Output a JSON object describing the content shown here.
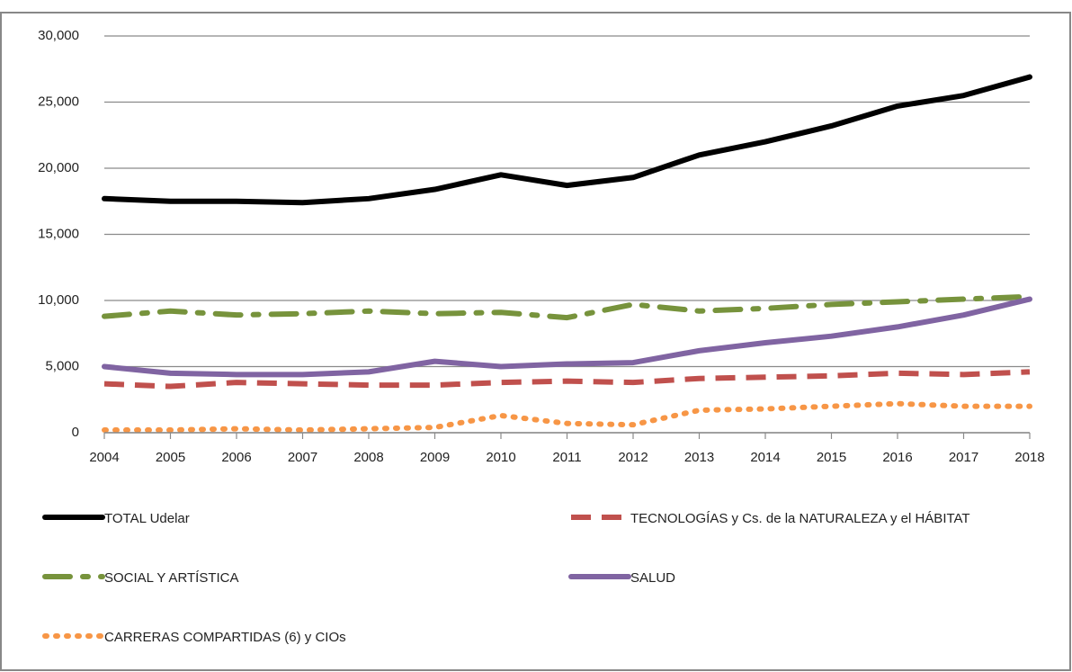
{
  "chart_data": {
    "type": "line",
    "x": [
      2004,
      2005,
      2006,
      2007,
      2008,
      2009,
      2010,
      2011,
      2012,
      2013,
      2014,
      2015,
      2016,
      2017,
      2018
    ],
    "xlim": [
      2004,
      2018
    ],
    "xticks": [
      2004,
      2005,
      2006,
      2007,
      2008,
      2009,
      2010,
      2011,
      2012,
      2013,
      2014,
      2015,
      2016,
      2017,
      2018
    ],
    "ylim": [
      0,
      30000
    ],
    "yticks": [
      0,
      {
        "value": 5000,
        "label": "5,000"
      },
      {
        "value": 10000,
        "label": "10,000"
      },
      {
        "value": 15000,
        "label": "15,000"
      },
      {
        "value": 20000,
        "label": "20,000"
      },
      {
        "value": 25000,
        "label": "25,000"
      },
      {
        "value": 30000,
        "label": "30,000"
      }
    ],
    "grid": true,
    "legend": "bottom",
    "series": [
      {
        "name": "TOTAL Udelar",
        "color": "#000000",
        "dash": "solid",
        "values": [
          17700,
          17500,
          17500,
          17400,
          17700,
          18400,
          19500,
          18700,
          19300,
          21000,
          22000,
          23200,
          24700,
          25500,
          26900
        ]
      },
      {
        "name": "TECNOLOGÍAS y Cs. de la NATURALEZA y el HÁBITAT",
        "color": "#c0504d",
        "dash": "dashed",
        "values": [
          3700,
          3500,
          3800,
          3700,
          3600,
          3600,
          3800,
          3900,
          3800,
          4100,
          4200,
          4300,
          4500,
          4400,
          4600
        ]
      },
      {
        "name": "SOCIAL Y ARTÍSTICA",
        "color": "#77933c",
        "dash": "dashdot",
        "values": [
          8800,
          9200,
          8900,
          9000,
          9200,
          9000,
          9100,
          8700,
          9700,
          9200,
          9400,
          9700,
          9900,
          10100,
          10300
        ]
      },
      {
        "name": "SALUD",
        "color": "#8064a2",
        "dash": "solid",
        "values": [
          5000,
          4500,
          4400,
          4400,
          4600,
          5400,
          5000,
          5200,
          5300,
          6200,
          6800,
          7300,
          8000,
          8900,
          10100
        ]
      },
      {
        "name": "CARRERAS COMPARTIDAS (6) y CIOs",
        "color": "#f79646",
        "dash": "dotted",
        "values": [
          200,
          200,
          300,
          200,
          300,
          400,
          1300,
          700,
          600,
          1700,
          1800,
          2000,
          2200,
          2000,
          2000
        ]
      }
    ]
  }
}
